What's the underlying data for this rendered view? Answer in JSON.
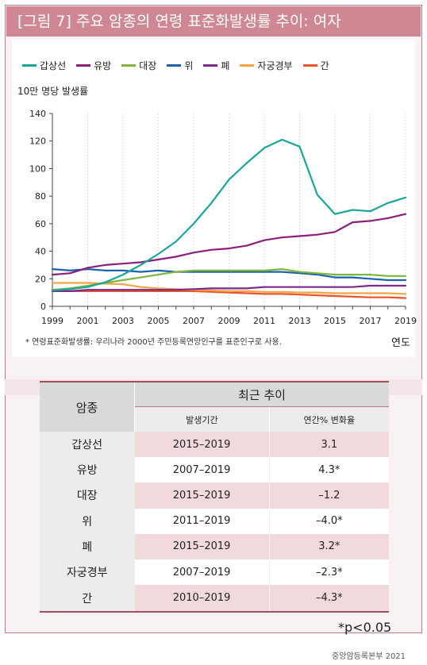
{
  "title": "[그림 7] 주요 암종의 연령 표준화발생률 추이: 여자",
  "chart_data": {
    "type": "line",
    "ylabel": "10만 명당 발생률",
    "xlabel": "연도",
    "ylim": [
      0,
      140
    ],
    "yticks": [
      "0",
      "20",
      "40",
      "60",
      "80",
      "100",
      "120",
      "140"
    ],
    "xticks": [
      "1999",
      "2001",
      "2003",
      "2005",
      "2007",
      "2009",
      "2011",
      "2013",
      "2015",
      "2017",
      "2019"
    ],
    "x": [
      1999,
      2000,
      2001,
      2002,
      2003,
      2004,
      2005,
      2006,
      2007,
      2008,
      2009,
      2010,
      2011,
      2012,
      2013,
      2014,
      2015,
      2016,
      2017,
      2018,
      2019
    ],
    "series": [
      {
        "name": "갑상선",
        "color": "#1aa59b",
        "values": [
          11.5,
          12.5,
          14,
          17.5,
          23,
          30,
          38,
          47,
          60,
          75,
          92,
          104,
          115,
          121,
          116,
          81,
          67,
          70,
          69,
          75,
          79
        ]
      },
      {
        "name": "유방",
        "color": "#8c1f7c",
        "values": [
          23,
          24,
          28,
          30,
          31,
          32,
          34,
          36,
          39,
          41,
          42,
          44,
          48,
          50,
          51,
          52,
          54,
          61,
          62,
          64,
          67
        ]
      },
      {
        "name": "대장",
        "color": "#7fb63d",
        "values": [
          12,
          13,
          15,
          17,
          19,
          21,
          23,
          25,
          26,
          26,
          26,
          26,
          26,
          27,
          25,
          24,
          23,
          23,
          23,
          22,
          22
        ]
      },
      {
        "name": "위",
        "color": "#1a63ae",
        "values": [
          27,
          26,
          27,
          26,
          26,
          25,
          26,
          25,
          25,
          25,
          25,
          25,
          25,
          25,
          24,
          23,
          21,
          21,
          20,
          19,
          19
        ]
      },
      {
        "name": "폐",
        "color": "#7a2a8a",
        "values": [
          11,
          11,
          12,
          12,
          12,
          12,
          12,
          12,
          12.5,
          13,
          13,
          13,
          14,
          14,
          14,
          14,
          14,
          14,
          15,
          15,
          15
        ]
      },
      {
        "name": "자궁경부",
        "color": "#f3a545",
        "values": [
          17,
          17,
          17,
          16.5,
          16,
          14,
          13,
          12.5,
          12,
          11.5,
          11,
          11,
          10.5,
          10.5,
          10,
          10,
          9.5,
          9.5,
          9.5,
          9.5,
          9
        ]
      },
      {
        "name": "간",
        "color": "#e8552a",
        "values": [
          11,
          11,
          11,
          11,
          11,
          11,
          11,
          11,
          11,
          10.5,
          10,
          9.5,
          9,
          9,
          8.5,
          8,
          7.5,
          7,
          6.5,
          6.5,
          6
        ]
      }
    ]
  },
  "footnote": "* 연령표준화발생률: 우리나라 2000년 주민등록연앙인구를 표준인구로 사용.",
  "table": {
    "col_cancer": "암종",
    "col_trend": "최근 추이",
    "col_period": "발생기간",
    "col_change": "연간% 변화율",
    "rows": [
      {
        "cancer": "갑상선",
        "period": "2015–2019",
        "change": "3.1"
      },
      {
        "cancer": "유방",
        "period": "2007–2019",
        "change": "4.3*"
      },
      {
        "cancer": "대장",
        "period": "2015–2019",
        "change": "–1.2"
      },
      {
        "cancer": "위",
        "period": "2011–2019",
        "change": "–4.0*"
      },
      {
        "cancer": "폐",
        "period": "2015–2019",
        "change": "3.2*"
      },
      {
        "cancer": "자궁경부",
        "period": "2007–2019",
        "change": "–2.3*"
      },
      {
        "cancer": "간",
        "period": "2010–2019",
        "change": "–4.3*"
      }
    ]
  },
  "pvalue_note": "*p<0.05",
  "source": "중앙암등록본부 2021"
}
